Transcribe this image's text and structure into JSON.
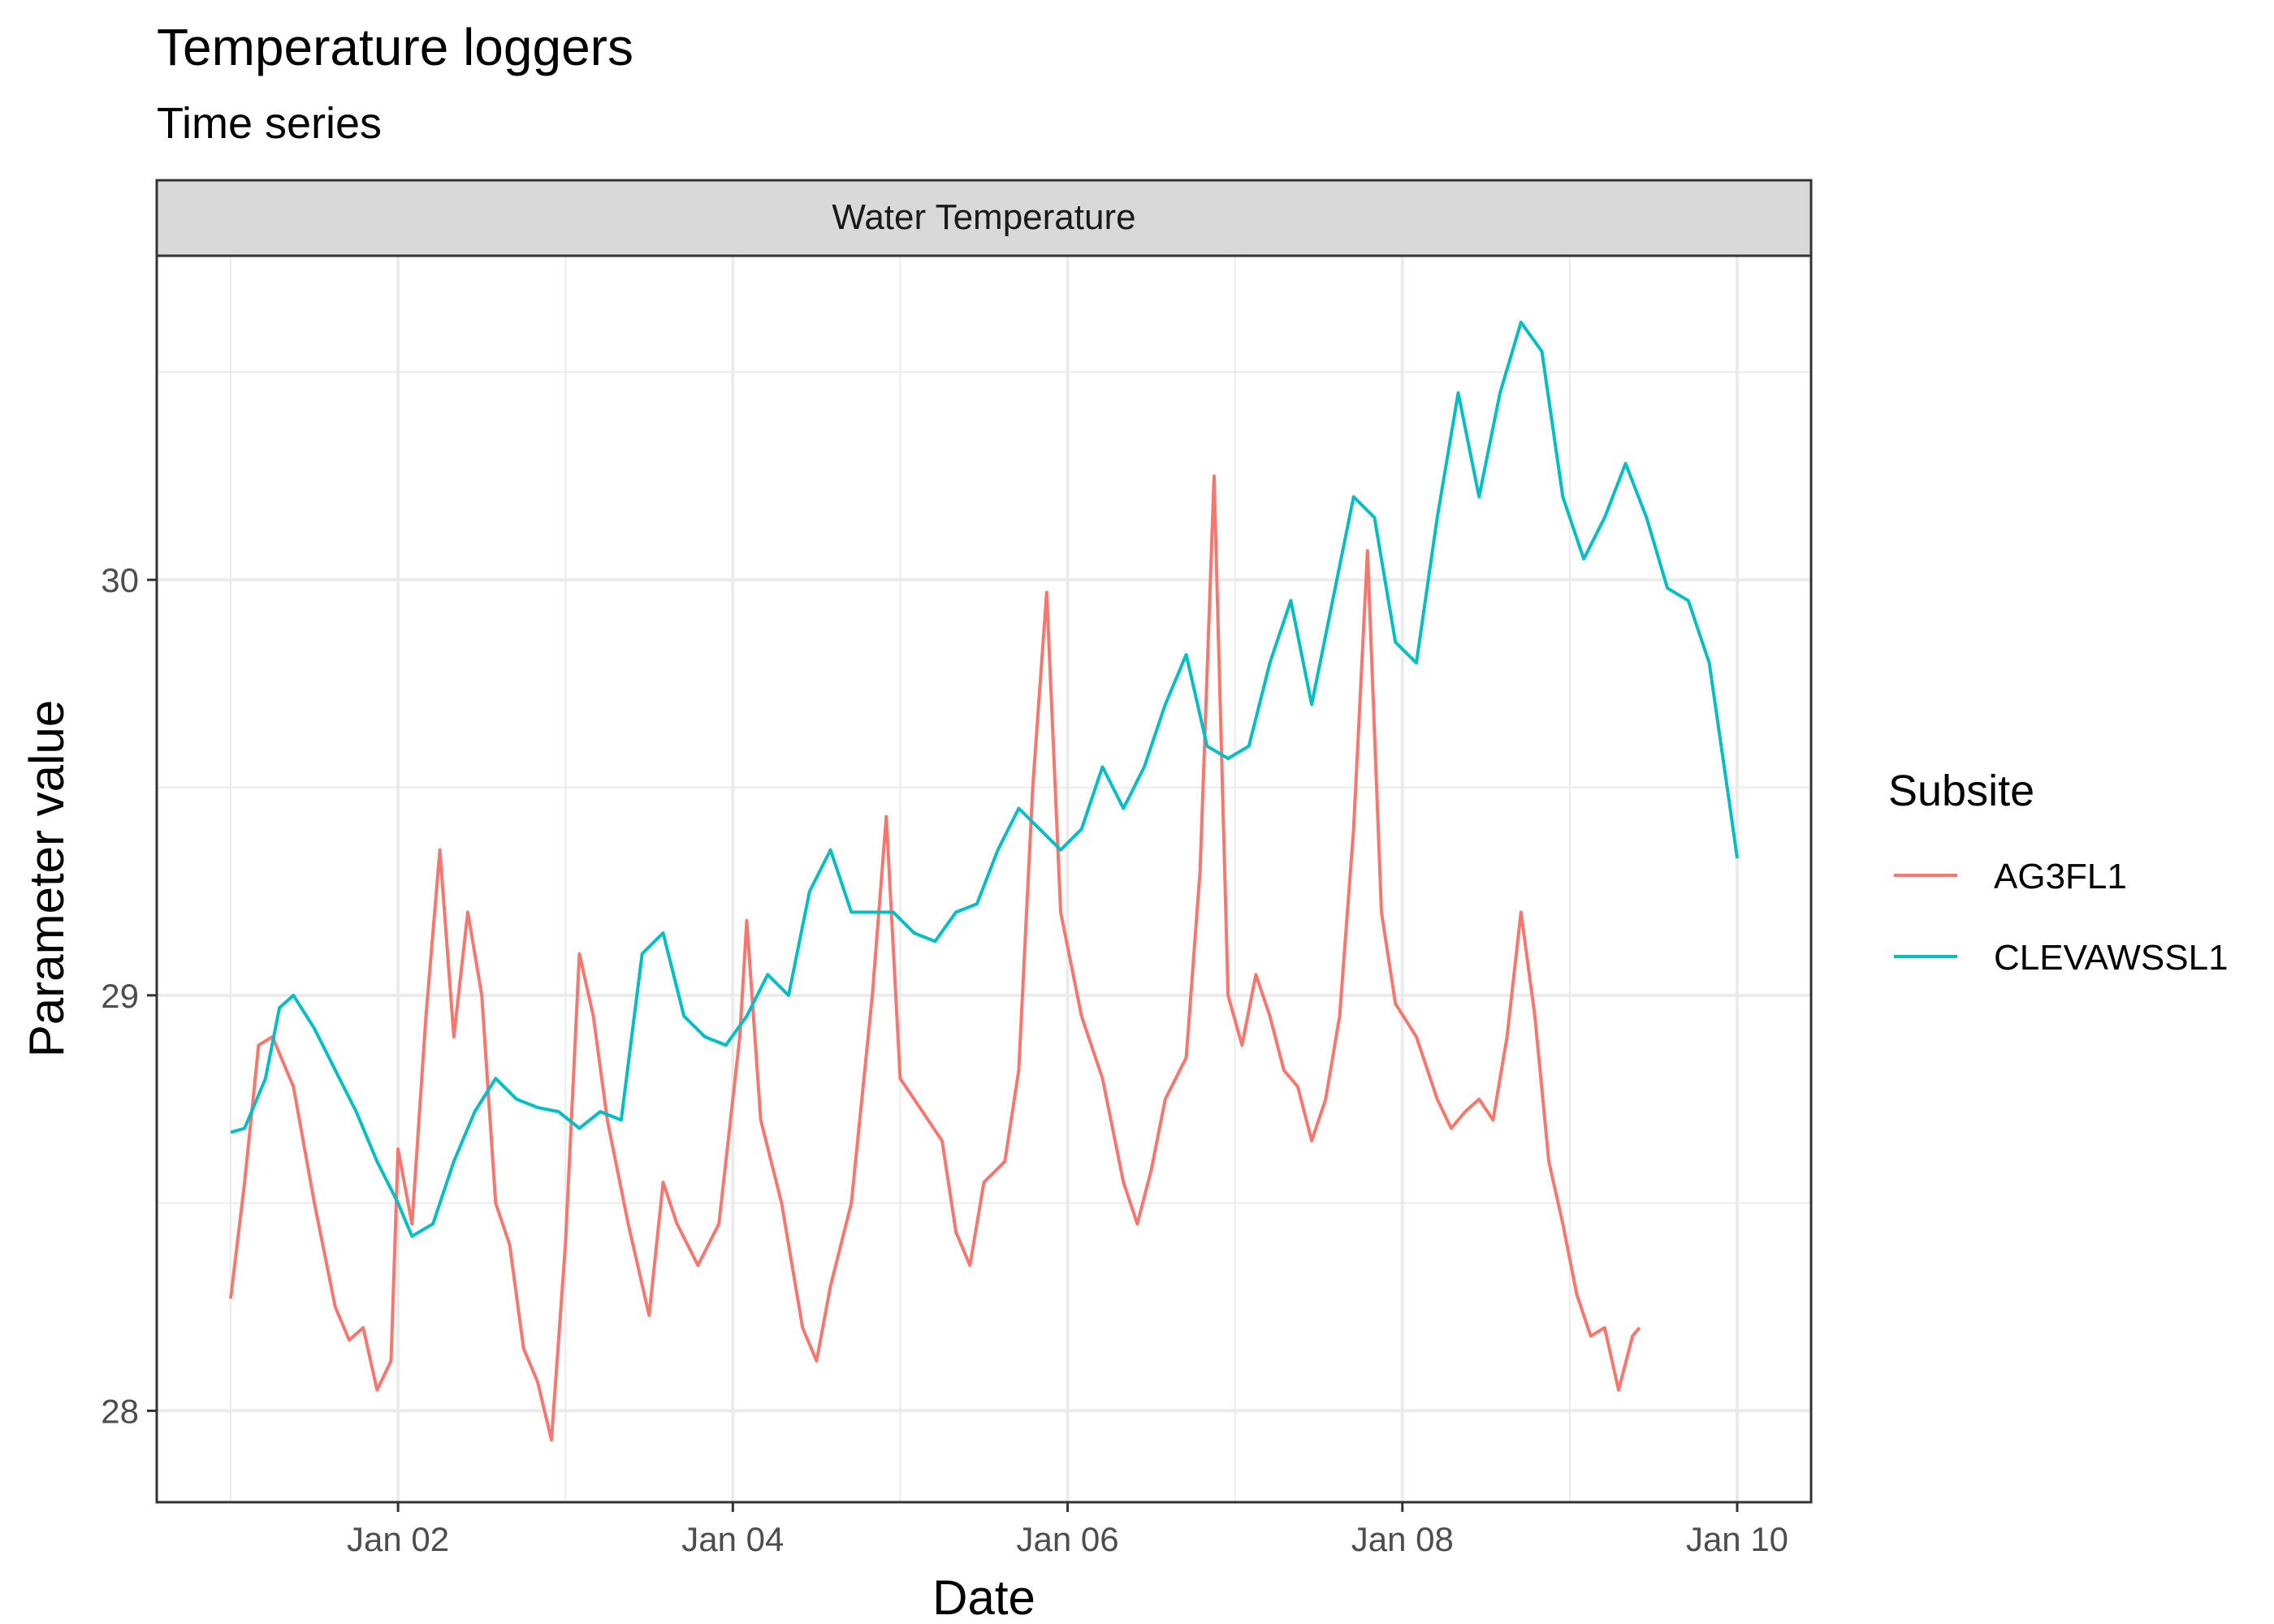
{
  "chart_data": {
    "type": "line",
    "title": "Temperature loggers",
    "subtitle": "Time series",
    "facet_label": "Water Temperature",
    "xlabel": "Date",
    "ylabel": "Parameter value",
    "legend_title": "Subsite",
    "legend_position": "right",
    "grid": true,
    "x_range": [
      "2000-01-01",
      "2000-01-10"
    ],
    "ylim": [
      27.78,
      30.78
    ],
    "x_ticks": [
      {
        "date": "2000-01-02",
        "label": "Jan 02"
      },
      {
        "date": "2000-01-04",
        "label": "Jan 04"
      },
      {
        "date": "2000-01-06",
        "label": "Jan 06"
      },
      {
        "date": "2000-01-08",
        "label": "Jan 08"
      },
      {
        "date": "2000-01-10",
        "label": "Jan 10"
      }
    ],
    "y_ticks": [
      28,
      29,
      30
    ],
    "series": [
      {
        "name": "AG3FL1",
        "color": "#F8766D",
        "points": [
          [
            "2000-01-01 00:00",
            28.27
          ],
          [
            "2000-01-01 02:00",
            28.55
          ],
          [
            "2000-01-01 04:00",
            28.88
          ],
          [
            "2000-01-01 06:00",
            28.9
          ],
          [
            "2000-01-01 09:00",
            28.78
          ],
          [
            "2000-01-01 12:00",
            28.5
          ],
          [
            "2000-01-01 15:00",
            28.25
          ],
          [
            "2000-01-01 17:00",
            28.17
          ],
          [
            "2000-01-01 19:00",
            28.2
          ],
          [
            "2000-01-01 21:00",
            28.05
          ],
          [
            "2000-01-01 23:00",
            28.12
          ],
          [
            "2000-01-02 00:00",
            28.63
          ],
          [
            "2000-01-02 02:00",
            28.45
          ],
          [
            "2000-01-02 04:00",
            28.95
          ],
          [
            "2000-01-02 06:00",
            29.35
          ],
          [
            "2000-01-02 08:00",
            28.9
          ],
          [
            "2000-01-02 10:00",
            29.2
          ],
          [
            "2000-01-02 12:00",
            29.0
          ],
          [
            "2000-01-02 14:00",
            28.5
          ],
          [
            "2000-01-02 16:00",
            28.4
          ],
          [
            "2000-01-02 18:00",
            28.15
          ],
          [
            "2000-01-02 20:00",
            28.07
          ],
          [
            "2000-01-02 22:00",
            27.93
          ],
          [
            "2000-01-03 00:00",
            28.4
          ],
          [
            "2000-01-03 02:00",
            29.1
          ],
          [
            "2000-01-03 04:00",
            28.95
          ],
          [
            "2000-01-03 06:00",
            28.7
          ],
          [
            "2000-01-03 09:00",
            28.45
          ],
          [
            "2000-01-03 12:00",
            28.23
          ],
          [
            "2000-01-03 14:00",
            28.55
          ],
          [
            "2000-01-03 16:00",
            28.45
          ],
          [
            "2000-01-03 19:00",
            28.35
          ],
          [
            "2000-01-03 22:00",
            28.45
          ],
          [
            "2000-01-04 01:00",
            28.9
          ],
          [
            "2000-01-04 02:00",
            29.18
          ],
          [
            "2000-01-04 04:00",
            28.7
          ],
          [
            "2000-01-04 07:00",
            28.5
          ],
          [
            "2000-01-04 10:00",
            28.2
          ],
          [
            "2000-01-04 12:00",
            28.12
          ],
          [
            "2000-01-04 14:00",
            28.3
          ],
          [
            "2000-01-04 17:00",
            28.5
          ],
          [
            "2000-01-04 20:00",
            29.0
          ],
          [
            "2000-01-04 22:00",
            29.43
          ],
          [
            "2000-01-05 00:00",
            28.8
          ],
          [
            "2000-01-05 04:00",
            28.7
          ],
          [
            "2000-01-05 06:00",
            28.65
          ],
          [
            "2000-01-05 08:00",
            28.43
          ],
          [
            "2000-01-05 10:00",
            28.35
          ],
          [
            "2000-01-05 12:00",
            28.55
          ],
          [
            "2000-01-05 15:00",
            28.6
          ],
          [
            "2000-01-05 17:00",
            28.82
          ],
          [
            "2000-01-05 19:00",
            29.5
          ],
          [
            "2000-01-05 21:00",
            29.97
          ],
          [
            "2000-01-05 23:00",
            29.2
          ],
          [
            "2000-01-06 02:00",
            28.95
          ],
          [
            "2000-01-06 05:00",
            28.8
          ],
          [
            "2000-01-06 08:00",
            28.55
          ],
          [
            "2000-01-06 10:00",
            28.45
          ],
          [
            "2000-01-06 12:00",
            28.58
          ],
          [
            "2000-01-06 14:00",
            28.75
          ],
          [
            "2000-01-06 17:00",
            28.85
          ],
          [
            "2000-01-06 19:00",
            29.3
          ],
          [
            "2000-01-06 21:00",
            30.25
          ],
          [
            "2000-01-06 23:00",
            29.0
          ],
          [
            "2000-01-07 01:00",
            28.88
          ],
          [
            "2000-01-07 03:00",
            29.05
          ],
          [
            "2000-01-07 05:00",
            28.95
          ],
          [
            "2000-01-07 07:00",
            28.82
          ],
          [
            "2000-01-07 09:00",
            28.78
          ],
          [
            "2000-01-07 11:00",
            28.65
          ],
          [
            "2000-01-07 13:00",
            28.75
          ],
          [
            "2000-01-07 15:00",
            28.95
          ],
          [
            "2000-01-07 17:00",
            29.4
          ],
          [
            "2000-01-07 19:00",
            30.07
          ],
          [
            "2000-01-07 21:00",
            29.2
          ],
          [
            "2000-01-07 23:00",
            28.98
          ],
          [
            "2000-01-08 02:00",
            28.9
          ],
          [
            "2000-01-08 05:00",
            28.75
          ],
          [
            "2000-01-08 07:00",
            28.68
          ],
          [
            "2000-01-08 09:00",
            28.72
          ],
          [
            "2000-01-08 11:00",
            28.75
          ],
          [
            "2000-01-08 13:00",
            28.7
          ],
          [
            "2000-01-08 15:00",
            28.9
          ],
          [
            "2000-01-08 17:00",
            29.2
          ],
          [
            "2000-01-08 19:00",
            28.95
          ],
          [
            "2000-01-08 21:00",
            28.6
          ],
          [
            "2000-01-08 23:00",
            28.45
          ],
          [
            "2000-01-09 01:00",
            28.28
          ],
          [
            "2000-01-09 03:00",
            28.18
          ],
          [
            "2000-01-09 05:00",
            28.2
          ],
          [
            "2000-01-09 07:00",
            28.05
          ],
          [
            "2000-01-09 09:00",
            28.18
          ],
          [
            "2000-01-09 10:00",
            28.2
          ]
        ]
      },
      {
        "name": "CLEVAWSSL1",
        "color": "#00BFC4",
        "points": [
          [
            "2000-01-01 00:00",
            28.67
          ],
          [
            "2000-01-01 02:00",
            28.68
          ],
          [
            "2000-01-01 05:00",
            28.8
          ],
          [
            "2000-01-01 07:00",
            28.97
          ],
          [
            "2000-01-01 09:00",
            29.0
          ],
          [
            "2000-01-01 12:00",
            28.92
          ],
          [
            "2000-01-01 15:00",
            28.82
          ],
          [
            "2000-01-01 18:00",
            28.72
          ],
          [
            "2000-01-01 21:00",
            28.6
          ],
          [
            "2000-01-02 00:00",
            28.5
          ],
          [
            "2000-01-02 02:00",
            28.42
          ],
          [
            "2000-01-02 05:00",
            28.45
          ],
          [
            "2000-01-02 08:00",
            28.6
          ],
          [
            "2000-01-02 11:00",
            28.72
          ],
          [
            "2000-01-02 14:00",
            28.8
          ],
          [
            "2000-01-02 17:00",
            28.75
          ],
          [
            "2000-01-02 20:00",
            28.73
          ],
          [
            "2000-01-02 23:00",
            28.72
          ],
          [
            "2000-01-03 02:00",
            28.68
          ],
          [
            "2000-01-03 05:00",
            28.72
          ],
          [
            "2000-01-03 08:00",
            28.7
          ],
          [
            "2000-01-03 11:00",
            29.1
          ],
          [
            "2000-01-03 14:00",
            29.15
          ],
          [
            "2000-01-03 17:00",
            28.95
          ],
          [
            "2000-01-03 20:00",
            28.9
          ],
          [
            "2000-01-03 23:00",
            28.88
          ],
          [
            "2000-01-04 02:00",
            28.95
          ],
          [
            "2000-01-04 05:00",
            29.05
          ],
          [
            "2000-01-04 08:00",
            29.0
          ],
          [
            "2000-01-04 11:00",
            29.25
          ],
          [
            "2000-01-04 14:00",
            29.35
          ],
          [
            "2000-01-04 17:00",
            29.2
          ],
          [
            "2000-01-04 20:00",
            29.2
          ],
          [
            "2000-01-04 23:00",
            29.2
          ],
          [
            "2000-01-05 02:00",
            29.15
          ],
          [
            "2000-01-05 05:00",
            29.13
          ],
          [
            "2000-01-05 08:00",
            29.2
          ],
          [
            "2000-01-05 11:00",
            29.22
          ],
          [
            "2000-01-05 14:00",
            29.35
          ],
          [
            "2000-01-05 17:00",
            29.45
          ],
          [
            "2000-01-05 20:00",
            29.4
          ],
          [
            "2000-01-05 23:00",
            29.35
          ],
          [
            "2000-01-06 02:00",
            29.4
          ],
          [
            "2000-01-06 05:00",
            29.55
          ],
          [
            "2000-01-06 08:00",
            29.45
          ],
          [
            "2000-01-06 11:00",
            29.55
          ],
          [
            "2000-01-06 14:00",
            29.7
          ],
          [
            "2000-01-06 17:00",
            29.82
          ],
          [
            "2000-01-06 20:00",
            29.6
          ],
          [
            "2000-01-06 23:00",
            29.57
          ],
          [
            "2000-01-07 02:00",
            29.6
          ],
          [
            "2000-01-07 05:00",
            29.8
          ],
          [
            "2000-01-07 08:00",
            29.95
          ],
          [
            "2000-01-07 11:00",
            29.7
          ],
          [
            "2000-01-07 14:00",
            29.95
          ],
          [
            "2000-01-07 17:00",
            30.2
          ],
          [
            "2000-01-07 20:00",
            30.15
          ],
          [
            "2000-01-07 23:00",
            29.85
          ],
          [
            "2000-01-08 02:00",
            29.8
          ],
          [
            "2000-01-08 05:00",
            30.15
          ],
          [
            "2000-01-08 08:00",
            30.45
          ],
          [
            "2000-01-08 11:00",
            30.2
          ],
          [
            "2000-01-08 14:00",
            30.45
          ],
          [
            "2000-01-08 17:00",
            30.62
          ],
          [
            "2000-01-08 20:00",
            30.55
          ],
          [
            "2000-01-08 23:00",
            30.2
          ],
          [
            "2000-01-09 02:00",
            30.05
          ],
          [
            "2000-01-09 05:00",
            30.15
          ],
          [
            "2000-01-09 08:00",
            30.28
          ],
          [
            "2000-01-09 11:00",
            30.15
          ],
          [
            "2000-01-09 14:00",
            29.98
          ],
          [
            "2000-01-09 17:00",
            29.95
          ],
          [
            "2000-01-09 20:00",
            29.8
          ],
          [
            "2000-01-09 23:00",
            29.45
          ],
          [
            "2000-01-10 00:00",
            29.33
          ]
        ]
      }
    ]
  }
}
